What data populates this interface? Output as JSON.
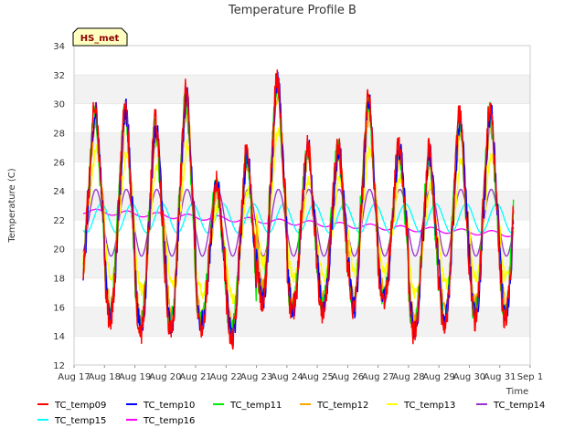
{
  "chart_data": {
    "type": "line",
    "title": "Temperature Profile B",
    "xlabel": "Time",
    "ylabel": "Temperature (C)",
    "badge": "HS_met",
    "ylim": [
      12,
      34
    ],
    "yticks": [
      12,
      14,
      16,
      18,
      20,
      22,
      24,
      26,
      28,
      30,
      32,
      34
    ],
    "xlim": [
      0,
      15
    ],
    "xticks": [
      {
        "value": 0,
        "label": "Aug 17"
      },
      {
        "value": 1,
        "label": "Aug 18"
      },
      {
        "value": 2,
        "label": "Aug 19"
      },
      {
        "value": 3,
        "label": "Aug 20"
      },
      {
        "value": 4,
        "label": "Aug 21"
      },
      {
        "value": 5,
        "label": "Aug 22"
      },
      {
        "value": 6,
        "label": "Aug 23"
      },
      {
        "value": 7,
        "label": "Aug 24"
      },
      {
        "value": 8,
        "label": "Aug 25"
      },
      {
        "value": 9,
        "label": "Aug 26"
      },
      {
        "value": 10,
        "label": "Aug 27"
      },
      {
        "value": 11,
        "label": "Aug 28"
      },
      {
        "value": 12,
        "label": "Aug 29"
      },
      {
        "value": 13,
        "label": "Aug 30"
      },
      {
        "value": 14,
        "label": "Aug 31"
      },
      {
        "value": 15,
        "label": "Sep 1"
      }
    ],
    "grid": "horizontal bands",
    "legend_position": "bottom",
    "day_peaks": [
      29.5,
      29.5,
      28.5,
      30.5,
      24.5,
      26.5,
      31.5,
      27.0,
      27.0,
      30.0,
      27.0,
      26.5,
      29.0,
      29.5
    ],
    "day_troughs": [
      17.0,
      15.5,
      14.5,
      14.8,
      15.0,
      14.0,
      16.5,
      16.0,
      16.0,
      16.0,
      16.5,
      14.5,
      15.0,
      15.5
    ],
    "series": [
      {
        "name": "TC_temp09",
        "color": "#ff0000",
        "kind": "surface",
        "amp": 1.05,
        "phase": 0.0,
        "noise": 0.9
      },
      {
        "name": "TC_temp10",
        "color": "#0000ff",
        "kind": "surface",
        "amp": 1.0,
        "phase": 0.02,
        "noise": 0.9
      },
      {
        "name": "TC_temp11",
        "color": "#00ee00",
        "kind": "surface",
        "amp": 0.98,
        "phase": -0.01,
        "noise": 0.8
      },
      {
        "name": "TC_temp12",
        "color": "#ffa500",
        "kind": "surface",
        "amp": 0.9,
        "phase": 0.03,
        "noise": 0.6
      },
      {
        "name": "TC_temp13",
        "color": "#ffff00",
        "kind": "surface",
        "amp": 0.72,
        "phase": 0.05,
        "noise": 0.5
      },
      {
        "name": "TC_temp14",
        "color": "#9932cc",
        "kind": "smooth",
        "mean": 21.8,
        "amp": 2.3,
        "phase": 0.12
      },
      {
        "name": "TC_temp15",
        "color": "#00ffff",
        "kind": "smooth",
        "mean": 22.1,
        "amp": 1.0,
        "phase": 0.3
      },
      {
        "name": "TC_temp16",
        "color": "#ff00ff",
        "kind": "deep",
        "start": 22.6,
        "end": 21.0
      }
    ]
  }
}
